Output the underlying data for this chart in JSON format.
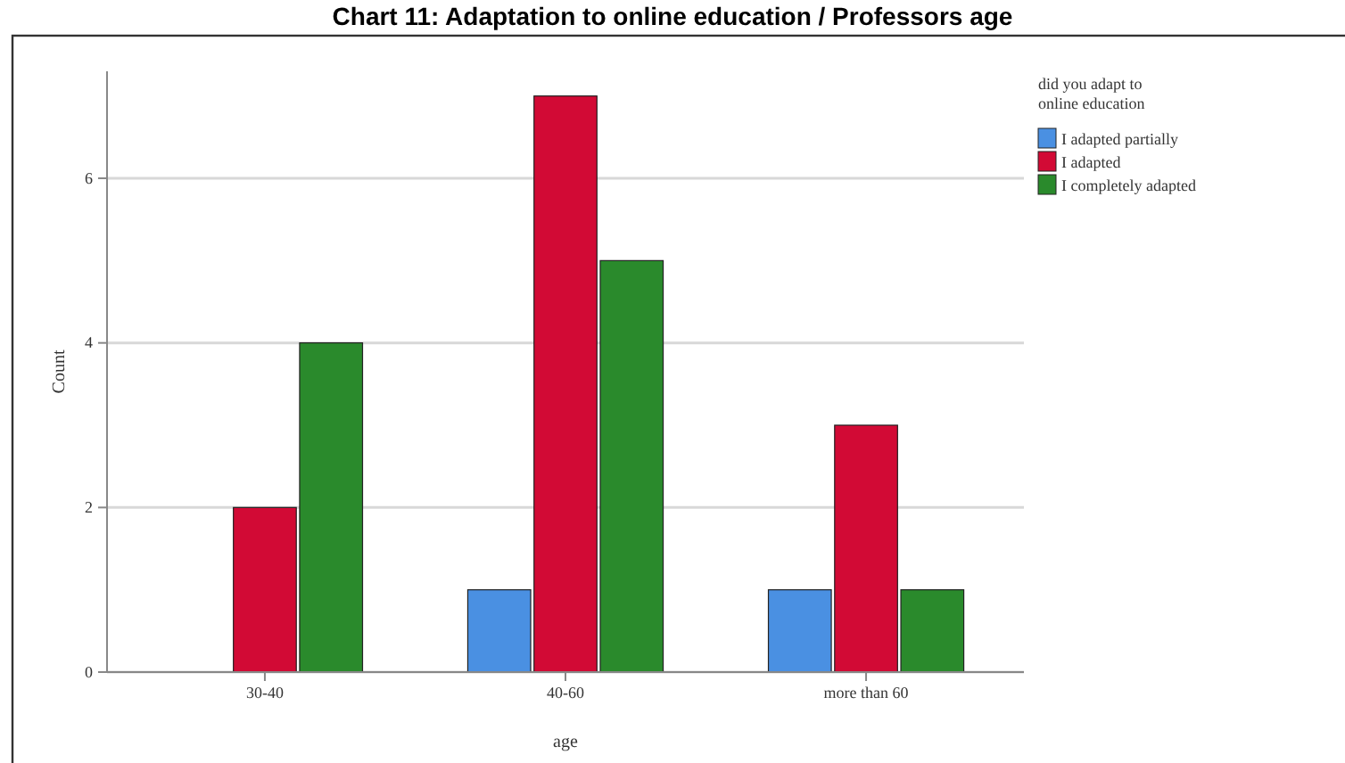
{
  "chart_data": {
    "type": "bar",
    "title": "Chart 11: Adaptation to online education / Professors age",
    "xlabel": "age",
    "ylabel": "Count",
    "legend_title": "did you adapt to online education",
    "categories": [
      "30-40",
      "40-60",
      "more than 60"
    ],
    "series": [
      {
        "name": "I adapted partially",
        "color": "#4a90e2",
        "values": [
          0,
          1,
          1
        ]
      },
      {
        "name": "I adapted",
        "color": "#d20a35",
        "values": [
          2,
          7,
          3
        ]
      },
      {
        "name": "I completely adapted",
        "color": "#2a8a2c",
        "values": [
          4,
          5,
          1
        ]
      }
    ],
    "ylim": [
      0,
      7.3
    ],
    "yticks": [
      0,
      2,
      4,
      6
    ],
    "grid": "y",
    "legend": "top right"
  }
}
